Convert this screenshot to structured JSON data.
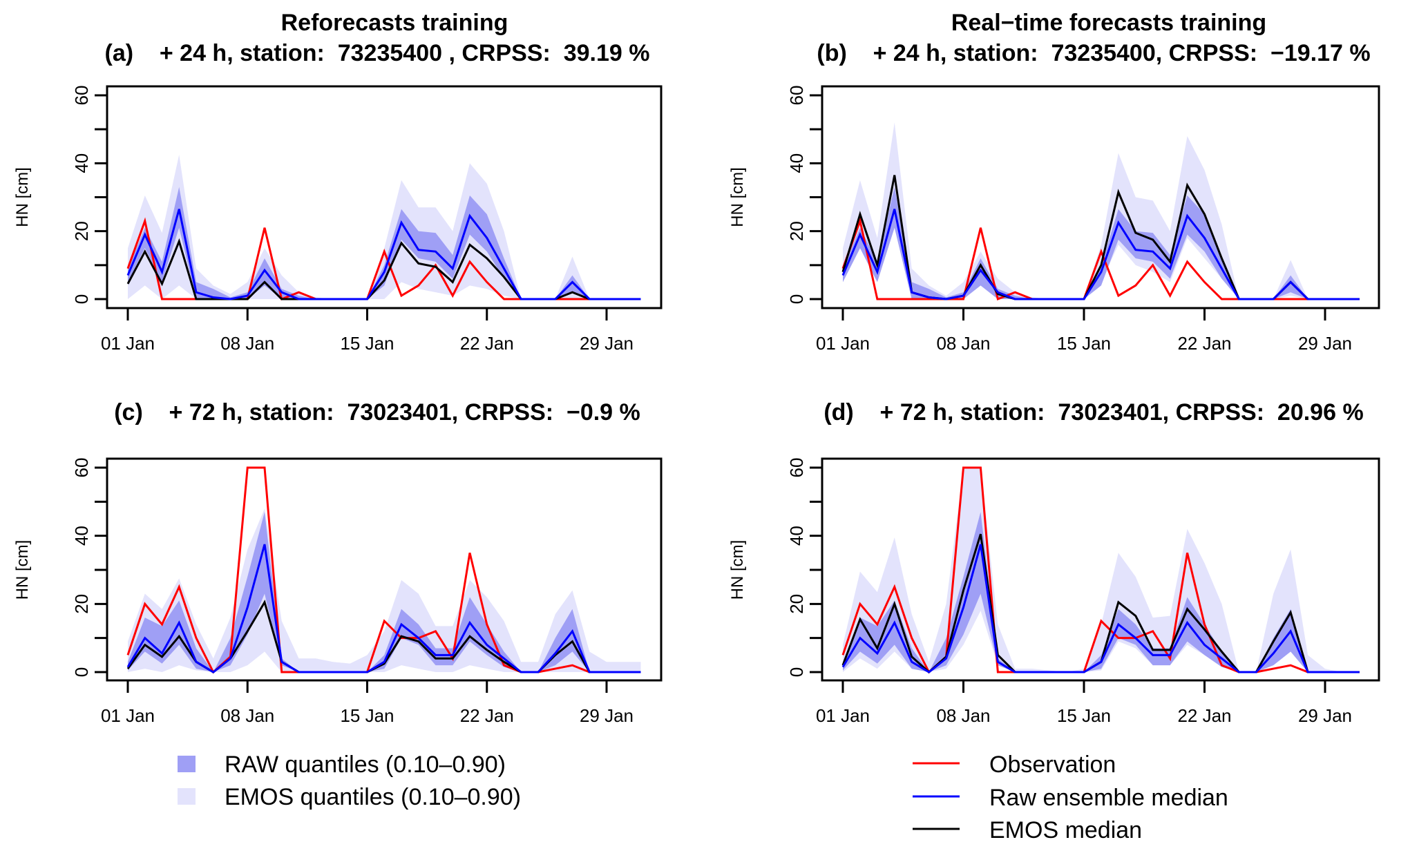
{
  "figure": {
    "legend_left": [
      {
        "label": "RAW quantiles (0.10–0.90)",
        "kind": "fill",
        "color": "#9f9ff5"
      },
      {
        "label": "EMOS quantiles (0.10–0.90)",
        "kind": "fill",
        "color": "#e3e3fc"
      }
    ],
    "legend_right": [
      {
        "label": "Observation",
        "kind": "line",
        "color": "#ff0000"
      },
      {
        "label": "Raw ensemble median",
        "kind": "line",
        "color": "#0000ff"
      },
      {
        "label": "EMOS median",
        "kind": "line",
        "color": "#000000"
      }
    ]
  },
  "chart_data": [
    {
      "type": "line",
      "panel": "a",
      "column_title": "Reforecasts training",
      "title": "(a)    + 24 h, station:  73235400 , CRPSS:  39.19 %",
      "xlabel": "",
      "ylabel": "HN [cm]",
      "ylim": [
        0,
        60
      ],
      "yticks": [
        0,
        20,
        40,
        60
      ],
      "xlim_days": [
        1,
        31
      ],
      "xticks": [
        {
          "day": 1,
          "label": "01 Jan"
        },
        {
          "day": 8,
          "label": "08 Jan"
        },
        {
          "day": 15,
          "label": "15 Jan"
        },
        {
          "day": 22,
          "label": "22 Jan"
        },
        {
          "day": 29,
          "label": "29 Jan"
        }
      ],
      "x_days": [
        1,
        2,
        3,
        4,
        5,
        6,
        7,
        8,
        9,
        10,
        11,
        12,
        13,
        14,
        15,
        16,
        17,
        18,
        19,
        20,
        21,
        22,
        23,
        24,
        25,
        26,
        27,
        28,
        29,
        30,
        31
      ],
      "observation": [
        9,
        23,
        0,
        0,
        0,
        0,
        0,
        0,
        21,
        0,
        2,
        0,
        0,
        0,
        0,
        14,
        1,
        4,
        10,
        1,
        11,
        5,
        0,
        0,
        0,
        0,
        0,
        0,
        0,
        0,
        0
      ],
      "raw_median": [
        7,
        19,
        8,
        26.5,
        2,
        0.5,
        0,
        1,
        8.5,
        2,
        0,
        0,
        0,
        0,
        0,
        8,
        22.5,
        14.5,
        14,
        9,
        24.5,
        18,
        9,
        0,
        0,
        0,
        5,
        0,
        0,
        0,
        0
      ],
      "emos_median": [
        4.5,
        14,
        4.5,
        17,
        0,
        0,
        0,
        0,
        5,
        0,
        0,
        0,
        0,
        0,
        0,
        5.5,
        16.5,
        10.5,
        9.5,
        5,
        16,
        12,
        6.5,
        0,
        0,
        0,
        2,
        0,
        0,
        0,
        0
      ],
      "raw_q10": [
        5,
        15,
        5,
        21,
        0,
        0,
        0,
        0,
        4,
        0,
        0,
        0,
        0,
        0,
        0,
        4,
        17.5,
        12,
        11,
        6,
        19,
        14,
        6,
        0,
        0,
        0,
        2,
        0,
        0,
        0,
        0
      ],
      "raw_q90": [
        9,
        21,
        11,
        33,
        5,
        3,
        0.5,
        2,
        12,
        3,
        1,
        0,
        0,
        0,
        0,
        10,
        26.5,
        20,
        19.5,
        13,
        30.5,
        25,
        12,
        0,
        0,
        0,
        7,
        0,
        0,
        0,
        0
      ],
      "emos_q10": [
        0,
        4,
        0,
        4,
        0,
        0,
        0,
        0,
        0,
        0,
        0,
        0,
        0,
        0,
        0,
        0,
        5,
        3,
        2,
        1,
        4,
        3,
        1,
        0,
        0,
        0,
        0,
        0,
        0,
        0,
        0
      ],
      "emos_q90": [
        15,
        30.5,
        19.5,
        42.5,
        9,
        4,
        1.5,
        5,
        15,
        7,
        2,
        0.5,
        0,
        0,
        0,
        15,
        35,
        27,
        27,
        20,
        40,
        34,
        20,
        0,
        0,
        0,
        12.5,
        0,
        0,
        0,
        0
      ]
    },
    {
      "type": "line",
      "panel": "b",
      "column_title": "Real−time forecasts training",
      "title": "(b)    + 24 h, station:  73235400, CRPSS:  −19.17 %",
      "xlabel": "",
      "ylabel": "HN [cm]",
      "ylim": [
        0,
        60
      ],
      "yticks": [
        0,
        20,
        40,
        60
      ],
      "xlim_days": [
        1,
        31
      ],
      "xticks": [
        {
          "day": 1,
          "label": "01 Jan"
        },
        {
          "day": 8,
          "label": "08 Jan"
        },
        {
          "day": 15,
          "label": "15 Jan"
        },
        {
          "day": 22,
          "label": "22 Jan"
        },
        {
          "day": 29,
          "label": "29 Jan"
        }
      ],
      "x_days": [
        1,
        2,
        3,
        4,
        5,
        6,
        7,
        8,
        9,
        10,
        11,
        12,
        13,
        14,
        15,
        16,
        17,
        18,
        19,
        20,
        21,
        22,
        23,
        24,
        25,
        26,
        27,
        28,
        29,
        30,
        31
      ],
      "observation": [
        9,
        23,
        0,
        0,
        0,
        0,
        0,
        0,
        21,
        0,
        2,
        0,
        0,
        0,
        0,
        14,
        1,
        4,
        10,
        1,
        11,
        5,
        0,
        0,
        0,
        0,
        0,
        0,
        0,
        0,
        0
      ],
      "raw_median": [
        7,
        19,
        8,
        26.5,
        2,
        0.5,
        0,
        1,
        8.5,
        2,
        0,
        0,
        0,
        0,
        0,
        8,
        22.5,
        14.5,
        14,
        9,
        24.5,
        18,
        9,
        0,
        0,
        0,
        5,
        0,
        0,
        0,
        0
      ],
      "emos_median": [
        8,
        25,
        10,
        36.5,
        2,
        0.5,
        0,
        1,
        10,
        1.5,
        0,
        0,
        0,
        0,
        0,
        10,
        31.5,
        19.5,
        17.5,
        11,
        33.5,
        25,
        12,
        0,
        0,
        0,
        5,
        0,
        0,
        0,
        0
      ],
      "raw_q10": [
        5,
        15,
        5,
        21,
        0,
        0,
        0,
        0,
        4,
        0,
        0,
        0,
        0,
        0,
        0,
        4,
        17.5,
        12,
        11,
        6,
        19,
        14,
        6,
        0,
        0,
        0,
        2,
        0,
        0,
        0,
        0
      ],
      "raw_q90": [
        9,
        21,
        11,
        33,
        5,
        3,
        0.5,
        2,
        12,
        3,
        1,
        0,
        0,
        0,
        0,
        10,
        26.5,
        20,
        19.5,
        13,
        30.5,
        25,
        12,
        0,
        0,
        0,
        7,
        0,
        0,
        0,
        0
      ],
      "emos_q10": [
        5,
        15,
        6,
        21,
        0,
        0,
        0,
        0,
        5,
        0,
        0,
        0,
        0,
        0,
        0,
        5,
        16,
        10,
        8,
        5,
        18,
        12,
        6,
        0,
        0,
        0,
        1,
        0,
        0,
        0,
        0
      ],
      "emos_q90": [
        15,
        35,
        18,
        52,
        9,
        4,
        1,
        5,
        14,
        6,
        2,
        0.5,
        0,
        0,
        0,
        16,
        43,
        30,
        29,
        20,
        48,
        38,
        22,
        0,
        0,
        0,
        11.5,
        0,
        0,
        0,
        0
      ]
    },
    {
      "type": "line",
      "panel": "c",
      "column_title": "",
      "title": "(c)    + 72 h, station:  73023401, CRPSS:  −0.9 %",
      "xlabel": "",
      "ylabel": "HN [cm]",
      "ylim": [
        0,
        60
      ],
      "yticks": [
        0,
        20,
        40,
        60
      ],
      "xlim_days": [
        1,
        31
      ],
      "xticks": [
        {
          "day": 1,
          "label": "01 Jan"
        },
        {
          "day": 8,
          "label": "08 Jan"
        },
        {
          "day": 15,
          "label": "15 Jan"
        },
        {
          "day": 22,
          "label": "22 Jan"
        },
        {
          "day": 29,
          "label": "29 Jan"
        }
      ],
      "x_days": [
        1,
        2,
        3,
        4,
        5,
        6,
        7,
        8,
        9,
        10,
        11,
        12,
        13,
        14,
        15,
        16,
        17,
        18,
        19,
        20,
        21,
        22,
        23,
        24,
        25,
        26,
        27,
        28,
        29,
        30,
        31
      ],
      "observation": [
        5,
        20,
        14,
        25,
        10,
        0,
        4.5,
        60,
        60,
        0,
        0,
        0,
        0,
        0,
        0,
        15,
        10,
        10,
        12,
        4,
        35,
        14,
        2,
        0,
        0,
        1,
        2,
        0,
        0,
        0,
        0
      ],
      "raw_median": [
        1.5,
        10,
        5.5,
        14.5,
        3,
        0,
        4,
        19,
        37.5,
        3,
        0,
        0,
        0,
        0,
        0,
        3,
        14,
        10,
        5,
        5,
        14.5,
        8,
        4,
        0,
        0,
        5.5,
        12,
        0,
        0,
        0,
        0
      ],
      "emos_median": [
        1,
        8,
        4.5,
        10.5,
        3,
        0,
        4,
        12,
        20.5,
        3,
        0,
        0,
        0,
        0,
        0,
        2.5,
        10.5,
        9,
        4,
        4,
        10.5,
        6.5,
        3,
        0,
        0,
        5,
        9,
        0,
        0,
        0,
        0
      ],
      "raw_q10": [
        0.5,
        6,
        2.5,
        8,
        1,
        0,
        2,
        11,
        23,
        2,
        0,
        0,
        0,
        0,
        0,
        1,
        10,
        8,
        2,
        2,
        9,
        5,
        1.5,
        0,
        0,
        2,
        6,
        0,
        0,
        0,
        0
      ],
      "raw_q90": [
        3,
        16,
        13.5,
        21,
        7,
        0,
        10,
        28,
        47,
        4,
        0,
        0,
        0,
        0,
        0,
        5,
        18.5,
        14,
        7,
        7,
        22,
        14,
        6,
        0,
        0,
        10,
        18.5,
        0,
        0,
        0,
        0
      ],
      "emos_q10": [
        0,
        1,
        0,
        2,
        0.5,
        0,
        0,
        2,
        6,
        0,
        0,
        0,
        0,
        0,
        0,
        0,
        2,
        1,
        0,
        0,
        2,
        1,
        0,
        0,
        0,
        0,
        0,
        0,
        0,
        0,
        0
      ],
      "emos_q90": [
        9,
        23,
        18.5,
        27.5,
        14,
        4,
        16,
        36,
        48,
        15,
        4,
        4,
        3,
        2.5,
        5,
        12,
        27,
        23,
        13.5,
        13.5,
        27,
        22,
        15,
        3,
        3,
        17,
        24,
        6,
        3,
        3,
        3
      ]
    },
    {
      "type": "line",
      "panel": "d",
      "column_title": "",
      "title": "(d)    + 72 h, station:  73023401, CRPSS:  20.96 %",
      "xlabel": "",
      "ylabel": "HN [cm]",
      "ylim": [
        0,
        60
      ],
      "yticks": [
        0,
        20,
        40,
        60
      ],
      "xlim_days": [
        1,
        31
      ],
      "xticks": [
        {
          "day": 1,
          "label": "01 Jan"
        },
        {
          "day": 8,
          "label": "08 Jan"
        },
        {
          "day": 15,
          "label": "15 Jan"
        },
        {
          "day": 22,
          "label": "22 Jan"
        },
        {
          "day": 29,
          "label": "29 Jan"
        }
      ],
      "x_days": [
        1,
        2,
        3,
        4,
        5,
        6,
        7,
        8,
        9,
        10,
        11,
        12,
        13,
        14,
        15,
        16,
        17,
        18,
        19,
        20,
        21,
        22,
        23,
        24,
        25,
        26,
        27,
        28,
        29,
        30,
        31
      ],
      "observation": [
        5,
        20,
        14,
        25,
        10,
        0,
        4.5,
        60,
        60,
        0,
        0,
        0,
        0,
        0,
        0,
        15,
        10,
        10,
        12,
        4,
        35,
        14,
        2,
        0,
        0,
        1,
        2,
        0,
        0,
        0,
        0
      ],
      "raw_median": [
        1.5,
        10,
        5.5,
        14.5,
        3,
        0,
        4,
        19,
        37.5,
        3,
        0,
        0,
        0,
        0,
        0,
        3,
        14,
        10,
        5,
        5,
        14.5,
        8,
        4,
        0,
        0,
        5.5,
        12,
        0,
        0,
        0,
        0
      ],
      "emos_median": [
        2,
        15.5,
        7,
        20,
        4.5,
        0,
        4.5,
        24,
        40.5,
        5,
        0,
        0,
        0,
        0,
        0,
        3,
        20.5,
        16.5,
        6.5,
        6.5,
        18.5,
        12.5,
        6,
        0,
        0,
        9,
        17.5,
        0,
        0,
        0,
        0
      ],
      "raw_q10": [
        0.5,
        6,
        2.5,
        8,
        1,
        0,
        2,
        11,
        23,
        2,
        0,
        0,
        0,
        0,
        0,
        1,
        10,
        8,
        2,
        2,
        9,
        5,
        1.5,
        0,
        0,
        2,
        6,
        0,
        0,
        0,
        0
      ],
      "raw_q90": [
        3,
        16,
        13.5,
        21,
        7,
        0,
        10,
        28,
        47,
        4,
        0,
        0,
        0,
        0,
        0,
        5,
        18.5,
        14,
        7,
        7,
        22,
        14,
        6,
        0,
        0,
        10,
        18.5,
        0,
        0,
        0,
        0
      ],
      "emos_q10": [
        0,
        4,
        1,
        6,
        1,
        0,
        1,
        8,
        18,
        2,
        0,
        0,
        0,
        0,
        0,
        0.5,
        9,
        7,
        2,
        2,
        8,
        5,
        2,
        0,
        0,
        3,
        7,
        0,
        0,
        0,
        0
      ],
      "emos_q90": [
        8,
        29.5,
        23.5,
        39.5,
        17,
        3,
        20,
        60,
        60,
        14,
        1,
        1,
        0.5,
        0,
        1,
        14,
        35,
        28,
        16,
        16.5,
        42,
        32,
        20,
        0,
        0,
        23,
        36,
        5,
        1,
        0,
        0
      ]
    }
  ]
}
